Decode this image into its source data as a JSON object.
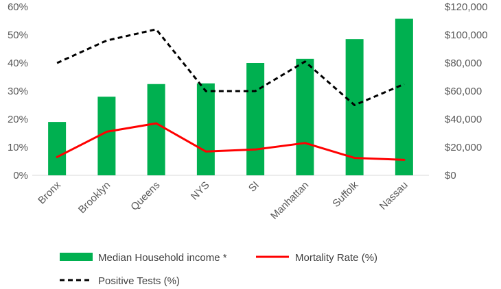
{
  "chart_data": {
    "type": "bar",
    "title": "",
    "categories": [
      "Bronx",
      "Brooklyn",
      "Queens",
      "NYS",
      "SI",
      "Manhattan",
      "Suffolk",
      "Nassau"
    ],
    "series": [
      {
        "name": "Median Household income *",
        "kind": "bar",
        "axis": "right",
        "color": "#00B050",
        "values": [
          38000,
          56000,
          65000,
          65500,
          80000,
          83000,
          97000,
          111500
        ]
      },
      {
        "name": "Mortality Rate (%)",
        "kind": "line",
        "axis": "left",
        "color": "#FF0000",
        "dash": "solid",
        "values": [
          6.5,
          15.5,
          18.5,
          8.5,
          9.2,
          11.5,
          6.2,
          5.5
        ]
      },
      {
        "name": "Positive Tests (%)",
        "kind": "line",
        "axis": "left",
        "color": "#000000",
        "dash": "dashed",
        "values": [
          40,
          48,
          52,
          30,
          30,
          40.5,
          25,
          32.5
        ]
      }
    ],
    "y_left": {
      "min": 0,
      "max": 60,
      "step": 10,
      "tick_labels": [
        "0%",
        "10%",
        "20%",
        "30%",
        "40%",
        "50%",
        "60%"
      ]
    },
    "y_right": {
      "min": 0,
      "max": 120000,
      "step": 20000,
      "tick_labels": [
        "$0",
        "$20,000",
        "$40,000",
        "$60,000",
        "$80,000",
        "$100,000",
        "$120,000"
      ]
    },
    "grid": false,
    "legend_position": "bottom"
  }
}
